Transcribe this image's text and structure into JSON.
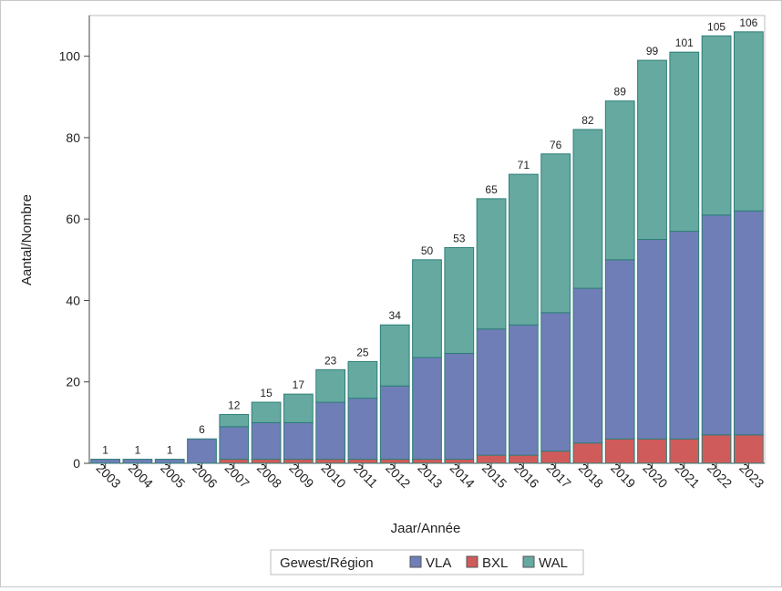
{
  "chart_data": {
    "type": "bar",
    "stacked": true,
    "categories": [
      "2003",
      "2004",
      "2005",
      "2006",
      "2007",
      "2008",
      "2009",
      "2010",
      "2011",
      "2012",
      "2013",
      "2014",
      "2015",
      "2016",
      "2017",
      "2018",
      "2019",
      "2020",
      "2021",
      "2022",
      "2023"
    ],
    "series": [
      {
        "name": "BXL",
        "color": "#d05b5b",
        "values": [
          0,
          0,
          0,
          0,
          1,
          1,
          1,
          1,
          1,
          1,
          1,
          1,
          2,
          2,
          3,
          5,
          6,
          6,
          6,
          7,
          7
        ]
      },
      {
        "name": "VLA",
        "color": "#6f7eb7",
        "values": [
          1,
          1,
          1,
          6,
          8,
          9,
          9,
          14,
          15,
          18,
          25,
          26,
          31,
          32,
          34,
          38,
          44,
          49,
          51,
          54,
          55
        ]
      },
      {
        "name": "WAL",
        "color": "#66a9a1",
        "values": [
          0,
          0,
          0,
          0,
          3,
          5,
          7,
          8,
          9,
          15,
          24,
          26,
          32,
          37,
          39,
          39,
          39,
          44,
          44,
          44,
          44
        ]
      }
    ],
    "totals": [
      1,
      1,
      1,
      6,
      12,
      15,
      17,
      23,
      25,
      34,
      50,
      53,
      65,
      71,
      76,
      82,
      89,
      99,
      101,
      105,
      106
    ],
    "xlabel": "Jaar/Année",
    "ylabel": "Aantal/Nombre",
    "ylim": [
      0,
      110
    ],
    "yticks": [
      0,
      20,
      40,
      60,
      80,
      100
    ],
    "legend": {
      "title": "Gewest/Région",
      "placement": "bottom",
      "entries": [
        {
          "name": "VLA",
          "color": "#6f7eb7"
        },
        {
          "name": "BXL",
          "color": "#d05b5b"
        },
        {
          "name": "WAL",
          "color": "#66a9a1"
        }
      ]
    },
    "grid": false
  }
}
